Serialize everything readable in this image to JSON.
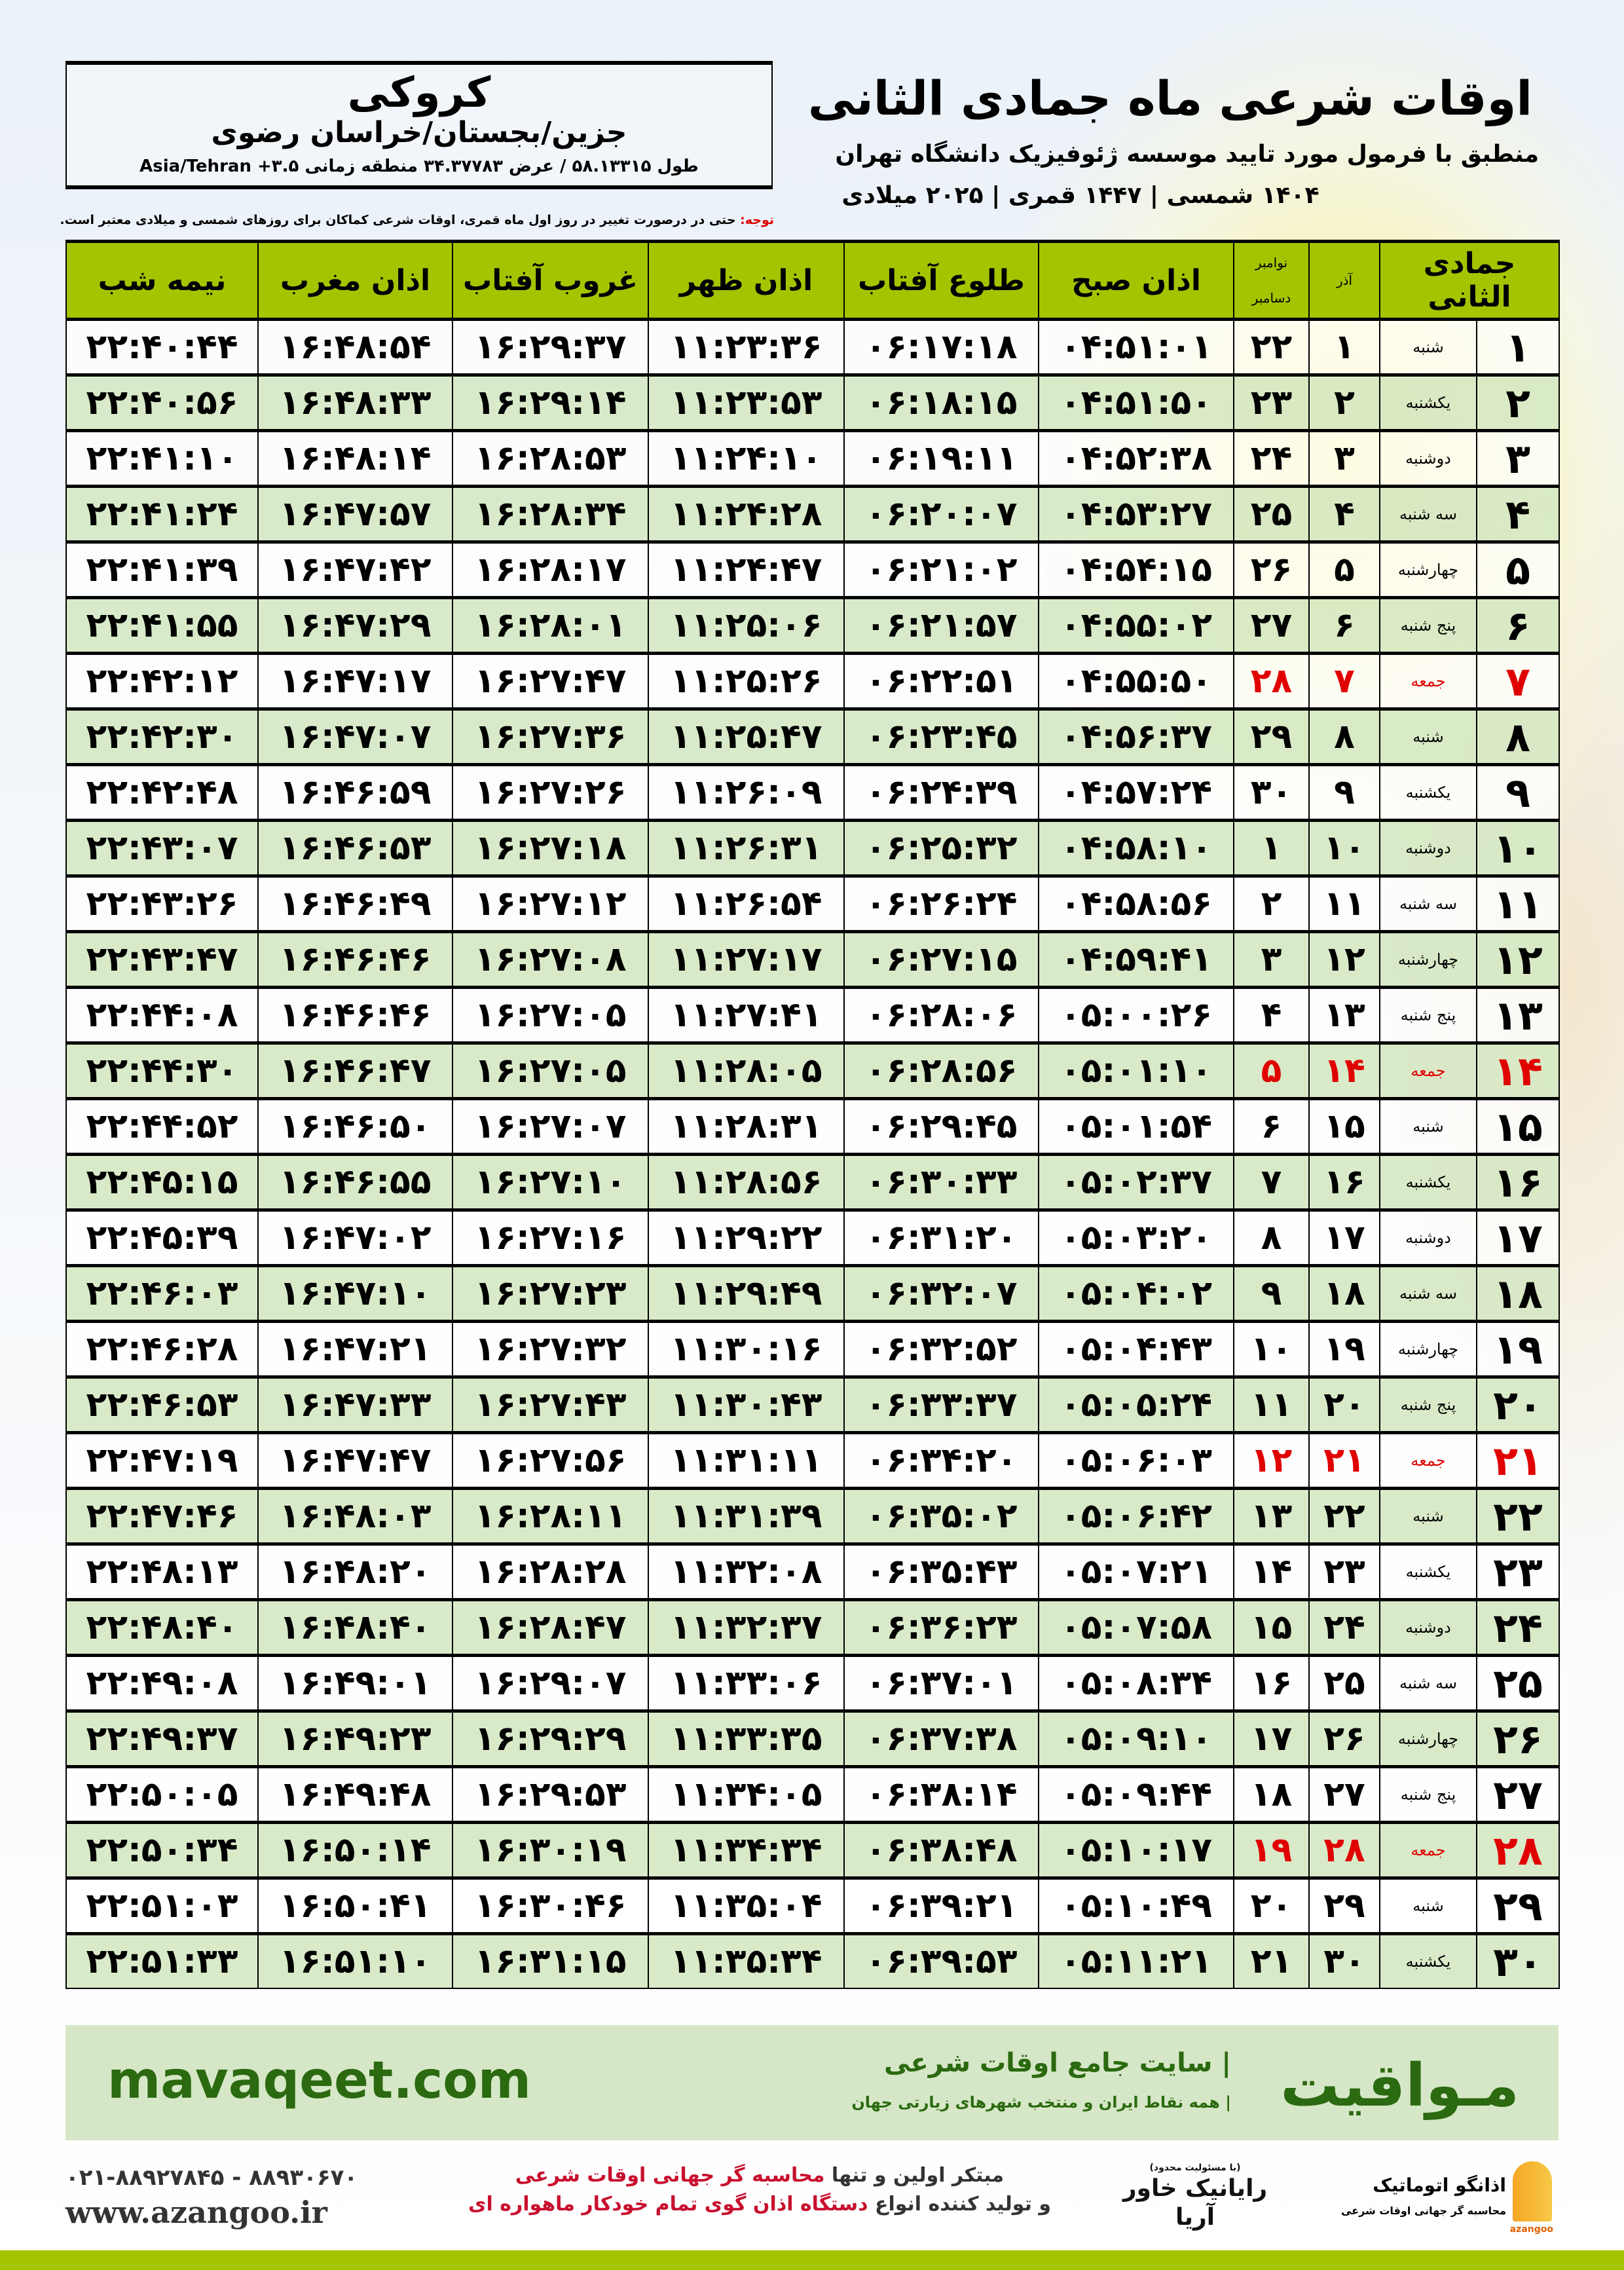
{
  "header": {
    "title": "اوقات شرعی ماه جمادی الثانی",
    "subtitle": "منطبق با فرمول مورد تایید موسسه ژئوفیزیک دانشگاه تهران",
    "years": "۱۴۰۴ شمسی | ۱۴۴۷ قمری | ۲۰۲۵ میلادی"
  },
  "location": {
    "city": "کروکی",
    "region": "جزین/بجستان/خراسان رضوی",
    "coords": "طول ۵۸.۱۳۳۱۵ / عرض ۳۴.۳۷۷۸۳ منطقه زمانی ۳.۵+ Asia/Tehran"
  },
  "note": {
    "label": "توجه:",
    "text": " حتی در درصورت تغییر در روز اول ماه قمری، اوقات شرعی کماکان برای روزهای شمسی و میلادی معتبر است."
  },
  "table": {
    "headers": {
      "hijri": "جمادی الثانی",
      "azar": "آذر",
      "gregorian_top": "نوامبر",
      "gregorian_bottom": "دسامبر",
      "fajr": "اذان صبح",
      "sunrise": "طلوع آفتاب",
      "dhuhr": "اذان ظهر",
      "sunset": "غروب آفتاب",
      "maghrib": "اذان مغرب",
      "midnight": "نیمه شب"
    },
    "holiday_color": "#e00000",
    "header_color": "#a4c400",
    "rows": [
      {
        "day": "۱",
        "weekday": "شنبه",
        "azar": "۱",
        "greg": "۲۲",
        "fajr": "۰۴:۵۱:۰۱",
        "sunrise": "۰۶:۱۷:۱۸",
        "dhuhr": "۱۱:۲۳:۳۶",
        "sunset": "۱۶:۲۹:۳۷",
        "maghrib": "۱۶:۴۸:۵۴",
        "midnight": "۲۲:۴۰:۴۴",
        "holiday": false
      },
      {
        "day": "۲",
        "weekday": "یکشنبه",
        "azar": "۲",
        "greg": "۲۳",
        "fajr": "۰۴:۵۱:۵۰",
        "sunrise": "۰۶:۱۸:۱۵",
        "dhuhr": "۱۱:۲۳:۵۳",
        "sunset": "۱۶:۲۹:۱۴",
        "maghrib": "۱۶:۴۸:۳۳",
        "midnight": "۲۲:۴۰:۵۶",
        "holiday": false
      },
      {
        "day": "۳",
        "weekday": "دوشنبه",
        "azar": "۳",
        "greg": "۲۴",
        "fajr": "۰۴:۵۲:۳۸",
        "sunrise": "۰۶:۱۹:۱۱",
        "dhuhr": "۱۱:۲۴:۱۰",
        "sunset": "۱۶:۲۸:۵۳",
        "maghrib": "۱۶:۴۸:۱۴",
        "midnight": "۲۲:۴۱:۱۰",
        "holiday": false
      },
      {
        "day": "۴",
        "weekday": "سه شنبه",
        "azar": "۴",
        "greg": "۲۵",
        "fajr": "۰۴:۵۳:۲۷",
        "sunrise": "۰۶:۲۰:۰۷",
        "dhuhr": "۱۱:۲۴:۲۸",
        "sunset": "۱۶:۲۸:۳۴",
        "maghrib": "۱۶:۴۷:۵۷",
        "midnight": "۲۲:۴۱:۲۴",
        "holiday": false
      },
      {
        "day": "۵",
        "weekday": "چهارشنبه",
        "azar": "۵",
        "greg": "۲۶",
        "fajr": "۰۴:۵۴:۱۵",
        "sunrise": "۰۶:۲۱:۰۲",
        "dhuhr": "۱۱:۲۴:۴۷",
        "sunset": "۱۶:۲۸:۱۷",
        "maghrib": "۱۶:۴۷:۴۲",
        "midnight": "۲۲:۴۱:۳۹",
        "holiday": false
      },
      {
        "day": "۶",
        "weekday": "پنج شنبه",
        "azar": "۶",
        "greg": "۲۷",
        "fajr": "۰۴:۵۵:۰۲",
        "sunrise": "۰۶:۲۱:۵۷",
        "dhuhr": "۱۱:۲۵:۰۶",
        "sunset": "۱۶:۲۸:۰۱",
        "maghrib": "۱۶:۴۷:۲۹",
        "midnight": "۲۲:۴۱:۵۵",
        "holiday": false
      },
      {
        "day": "۷",
        "weekday": "جمعه",
        "azar": "۷",
        "greg": "۲۸",
        "fajr": "۰۴:۵۵:۵۰",
        "sunrise": "۰۶:۲۲:۵۱",
        "dhuhr": "۱۱:۲۵:۲۶",
        "sunset": "۱۶:۲۷:۴۷",
        "maghrib": "۱۶:۴۷:۱۷",
        "midnight": "۲۲:۴۲:۱۲",
        "holiday": true
      },
      {
        "day": "۸",
        "weekday": "شنبه",
        "azar": "۸",
        "greg": "۲۹",
        "fajr": "۰۴:۵۶:۳۷",
        "sunrise": "۰۶:۲۳:۴۵",
        "dhuhr": "۱۱:۲۵:۴۷",
        "sunset": "۱۶:۲۷:۳۶",
        "maghrib": "۱۶:۴۷:۰۷",
        "midnight": "۲۲:۴۲:۳۰",
        "holiday": false
      },
      {
        "day": "۹",
        "weekday": "یکشنبه",
        "azar": "۹",
        "greg": "۳۰",
        "fajr": "۰۴:۵۷:۲۴",
        "sunrise": "۰۶:۲۴:۳۹",
        "dhuhr": "۱۱:۲۶:۰۹",
        "sunset": "۱۶:۲۷:۲۶",
        "maghrib": "۱۶:۴۶:۵۹",
        "midnight": "۲۲:۴۲:۴۸",
        "holiday": false
      },
      {
        "day": "۱۰",
        "weekday": "دوشنبه",
        "azar": "۱۰",
        "greg": "۱",
        "fajr": "۰۴:۵۸:۱۰",
        "sunrise": "۰۶:۲۵:۳۲",
        "dhuhr": "۱۱:۲۶:۳۱",
        "sunset": "۱۶:۲۷:۱۸",
        "maghrib": "۱۶:۴۶:۵۳",
        "midnight": "۲۲:۴۳:۰۷",
        "holiday": false
      },
      {
        "day": "۱۱",
        "weekday": "سه شنبه",
        "azar": "۱۱",
        "greg": "۲",
        "fajr": "۰۴:۵۸:۵۶",
        "sunrise": "۰۶:۲۶:۲۴",
        "dhuhr": "۱۱:۲۶:۵۴",
        "sunset": "۱۶:۲۷:۱۲",
        "maghrib": "۱۶:۴۶:۴۹",
        "midnight": "۲۲:۴۳:۲۶",
        "holiday": false
      },
      {
        "day": "۱۲",
        "weekday": "چهارشنبه",
        "azar": "۱۲",
        "greg": "۳",
        "fajr": "۰۴:۵۹:۴۱",
        "sunrise": "۰۶:۲۷:۱۵",
        "dhuhr": "۱۱:۲۷:۱۷",
        "sunset": "۱۶:۲۷:۰۸",
        "maghrib": "۱۶:۴۶:۴۶",
        "midnight": "۲۲:۴۳:۴۷",
        "holiday": false
      },
      {
        "day": "۱۳",
        "weekday": "پنج شنبه",
        "azar": "۱۳",
        "greg": "۴",
        "fajr": "۰۵:۰۰:۲۶",
        "sunrise": "۰۶:۲۸:۰۶",
        "dhuhr": "۱۱:۲۷:۴۱",
        "sunset": "۱۶:۲۷:۰۵",
        "maghrib": "۱۶:۴۶:۴۶",
        "midnight": "۲۲:۴۴:۰۸",
        "holiday": false
      },
      {
        "day": "۱۴",
        "weekday": "جمعه",
        "azar": "۱۴",
        "greg": "۵",
        "fajr": "۰۵:۰۱:۱۰",
        "sunrise": "۰۶:۲۸:۵۶",
        "dhuhr": "۱۱:۲۸:۰۵",
        "sunset": "۱۶:۲۷:۰۵",
        "maghrib": "۱۶:۴۶:۴۷",
        "midnight": "۲۲:۴۴:۳۰",
        "holiday": true
      },
      {
        "day": "۱۵",
        "weekday": "شنبه",
        "azar": "۱۵",
        "greg": "۶",
        "fajr": "۰۵:۰۱:۵۴",
        "sunrise": "۰۶:۲۹:۴۵",
        "dhuhr": "۱۱:۲۸:۳۱",
        "sunset": "۱۶:۲۷:۰۷",
        "maghrib": "۱۶:۴۶:۵۰",
        "midnight": "۲۲:۴۴:۵۲",
        "holiday": false
      },
      {
        "day": "۱۶",
        "weekday": "یکشنبه",
        "azar": "۱۶",
        "greg": "۷",
        "fajr": "۰۵:۰۲:۳۷",
        "sunrise": "۰۶:۳۰:۳۳",
        "dhuhr": "۱۱:۲۸:۵۶",
        "sunset": "۱۶:۲۷:۱۰",
        "maghrib": "۱۶:۴۶:۵۵",
        "midnight": "۲۲:۴۵:۱۵",
        "holiday": false
      },
      {
        "day": "۱۷",
        "weekday": "دوشنبه",
        "azar": "۱۷",
        "greg": "۸",
        "fajr": "۰۵:۰۳:۲۰",
        "sunrise": "۰۶:۳۱:۲۰",
        "dhuhr": "۱۱:۲۹:۲۲",
        "sunset": "۱۶:۲۷:۱۶",
        "maghrib": "۱۶:۴۷:۰۲",
        "midnight": "۲۲:۴۵:۳۹",
        "holiday": false
      },
      {
        "day": "۱۸",
        "weekday": "سه شنبه",
        "azar": "۱۸",
        "greg": "۹",
        "fajr": "۰۵:۰۴:۰۲",
        "sunrise": "۰۶:۳۲:۰۷",
        "dhuhr": "۱۱:۲۹:۴۹",
        "sunset": "۱۶:۲۷:۲۳",
        "maghrib": "۱۶:۴۷:۱۰",
        "midnight": "۲۲:۴۶:۰۳",
        "holiday": false
      },
      {
        "day": "۱۹",
        "weekday": "چهارشنبه",
        "azar": "۱۹",
        "greg": "۱۰",
        "fajr": "۰۵:۰۴:۴۳",
        "sunrise": "۰۶:۳۲:۵۲",
        "dhuhr": "۱۱:۳۰:۱۶",
        "sunset": "۱۶:۲۷:۳۲",
        "maghrib": "۱۶:۴۷:۲۱",
        "midnight": "۲۲:۴۶:۲۸",
        "holiday": false
      },
      {
        "day": "۲۰",
        "weekday": "پنج شنبه",
        "azar": "۲۰",
        "greg": "۱۱",
        "fajr": "۰۵:۰۵:۲۴",
        "sunrise": "۰۶:۳۳:۳۷",
        "dhuhr": "۱۱:۳۰:۴۳",
        "sunset": "۱۶:۲۷:۴۳",
        "maghrib": "۱۶:۴۷:۳۳",
        "midnight": "۲۲:۴۶:۵۳",
        "holiday": false
      },
      {
        "day": "۲۱",
        "weekday": "جمعه",
        "azar": "۲۱",
        "greg": "۱۲",
        "fajr": "۰۵:۰۶:۰۳",
        "sunrise": "۰۶:۳۴:۲۰",
        "dhuhr": "۱۱:۳۱:۱۱",
        "sunset": "۱۶:۲۷:۵۶",
        "maghrib": "۱۶:۴۷:۴۷",
        "midnight": "۲۲:۴۷:۱۹",
        "holiday": true
      },
      {
        "day": "۲۲",
        "weekday": "شنبه",
        "azar": "۲۲",
        "greg": "۱۳",
        "fajr": "۰۵:۰۶:۴۲",
        "sunrise": "۰۶:۳۵:۰۲",
        "dhuhr": "۱۱:۳۱:۳۹",
        "sunset": "۱۶:۲۸:۱۱",
        "maghrib": "۱۶:۴۸:۰۳",
        "midnight": "۲۲:۴۷:۴۶",
        "holiday": false
      },
      {
        "day": "۲۳",
        "weekday": "یکشنبه",
        "azar": "۲۳",
        "greg": "۱۴",
        "fajr": "۰۵:۰۷:۲۱",
        "sunrise": "۰۶:۳۵:۴۳",
        "dhuhr": "۱۱:۳۲:۰۸",
        "sunset": "۱۶:۲۸:۲۸",
        "maghrib": "۱۶:۴۸:۲۰",
        "midnight": "۲۲:۴۸:۱۳",
        "holiday": false
      },
      {
        "day": "۲۴",
        "weekday": "دوشنبه",
        "azar": "۲۴",
        "greg": "۱۵",
        "fajr": "۰۵:۰۷:۵۸",
        "sunrise": "۰۶:۳۶:۲۳",
        "dhuhr": "۱۱:۳۲:۳۷",
        "sunset": "۱۶:۲۸:۴۷",
        "maghrib": "۱۶:۴۸:۴۰",
        "midnight": "۲۲:۴۸:۴۰",
        "holiday": false
      },
      {
        "day": "۲۵",
        "weekday": "سه شنبه",
        "azar": "۲۵",
        "greg": "۱۶",
        "fajr": "۰۵:۰۸:۳۴",
        "sunrise": "۰۶:۳۷:۰۱",
        "dhuhr": "۱۱:۳۳:۰۶",
        "sunset": "۱۶:۲۹:۰۷",
        "maghrib": "۱۶:۴۹:۰۱",
        "midnight": "۲۲:۴۹:۰۸",
        "holiday": false
      },
      {
        "day": "۲۶",
        "weekday": "چهارشنبه",
        "azar": "۲۶",
        "greg": "۱۷",
        "fajr": "۰۵:۰۹:۱۰",
        "sunrise": "۰۶:۳۷:۳۸",
        "dhuhr": "۱۱:۳۳:۳۵",
        "sunset": "۱۶:۲۹:۲۹",
        "maghrib": "۱۶:۴۹:۲۳",
        "midnight": "۲۲:۴۹:۳۷",
        "holiday": false
      },
      {
        "day": "۲۷",
        "weekday": "پنج شنبه",
        "azar": "۲۷",
        "greg": "۱۸",
        "fajr": "۰۵:۰۹:۴۴",
        "sunrise": "۰۶:۳۸:۱۴",
        "dhuhr": "۱۱:۳۴:۰۵",
        "sunset": "۱۶:۲۹:۵۳",
        "maghrib": "۱۶:۴۹:۴۸",
        "midnight": "۲۲:۵۰:۰۵",
        "holiday": false
      },
      {
        "day": "۲۸",
        "weekday": "جمعه",
        "azar": "۲۸",
        "greg": "۱۹",
        "fajr": "۰۵:۱۰:۱۷",
        "sunrise": "۰۶:۳۸:۴۸",
        "dhuhr": "۱۱:۳۴:۳۴",
        "sunset": "۱۶:۳۰:۱۹",
        "maghrib": "۱۶:۵۰:۱۴",
        "midnight": "۲۲:۵۰:۳۴",
        "holiday": true
      },
      {
        "day": "۲۹",
        "weekday": "شنبه",
        "azar": "۲۹",
        "greg": "۲۰",
        "fajr": "۰۵:۱۰:۴۹",
        "sunrise": "۰۶:۳۹:۲۱",
        "dhuhr": "۱۱:۳۵:۰۴",
        "sunset": "۱۶:۳۰:۴۶",
        "maghrib": "۱۶:۵۰:۴۱",
        "midnight": "۲۲:۵۱:۰۳",
        "holiday": false
      },
      {
        "day": "۳۰",
        "weekday": "یکشنبه",
        "azar": "۳۰",
        "greg": "۲۱",
        "fajr": "۰۵:۱۱:۲۱",
        "sunrise": "۰۶:۳۹:۵۳",
        "dhuhr": "۱۱:۳۵:۳۴",
        "sunset": "۱۶:۳۱:۱۵",
        "maghrib": "۱۶:۵۱:۱۰",
        "midnight": "۲۲:۵۱:۳۳",
        "holiday": false
      }
    ]
  },
  "footer": {
    "brand": "مـواقیت",
    "slogan": "| سایت جامع اوقات شرعی",
    "slogan_small": "| همه نقاط ایران و منتخب شهرهای زیارتی جهان",
    "site": "mavaqeet.com",
    "phone": "۰۲۱-۸۸۹۲۷۸۴۵ - ۸۸۹۳۰۶۷۰",
    "web": "www.azangoo.ir",
    "promo_line1_a": "مبتکر اولین و تنها ",
    "promo_line1_b": "محاسبه گر جهانی اوقات شرعی",
    "promo_line2_a": "و تولید کننده انواع ",
    "promo_line2_b": "دستگاه اذان گوی تمام خودکار ماهواره ای",
    "rayanik_sub": "(با مسئولیت محدود)",
    "rayanik": "رایانیک خاور آریا",
    "azangoo_name": "اذانگو اتوماتیک",
    "azangoo_tag": "محاسبه گر جهانی اوقات شرعی",
    "azangoo_en": "azangoo",
    "accent_color": "#2b6a10"
  }
}
